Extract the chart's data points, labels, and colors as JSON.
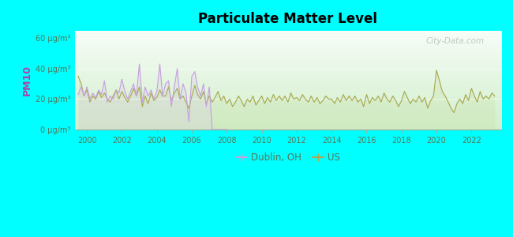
{
  "title": "Particulate Matter Level",
  "ylabel": "PM10",
  "background_outer": "#00FFFF",
  "watermark": "City-Data.com",
  "yticks": [
    0,
    20,
    40,
    60
  ],
  "ytick_labels": [
    "0 μg/m³",
    "20 μg/m³",
    "40 μg/m³",
    "60 μg/m³"
  ],
  "xmin": 1999.3,
  "xmax": 2023.7,
  "ymin": 0,
  "ymax": 65,
  "dublin_color": "#c8a0e0",
  "us_color": "#a8aa50",
  "dublin_fill": "#ddc8f0",
  "us_fill": "#c8dca0",
  "legend_dublin": "Dublin, OH",
  "legend_us": "US",
  "dublin_data": [
    [
      1999.5,
      23
    ],
    [
      1999.67,
      28
    ],
    [
      1999.83,
      22
    ],
    [
      2000.0,
      28
    ],
    [
      2000.17,
      20
    ],
    [
      2000.33,
      24
    ],
    [
      2000.5,
      21
    ],
    [
      2000.67,
      26
    ],
    [
      2000.83,
      23
    ],
    [
      2001.0,
      32
    ],
    [
      2001.17,
      18
    ],
    [
      2001.33,
      22
    ],
    [
      2001.5,
      20
    ],
    [
      2001.67,
      26
    ],
    [
      2001.83,
      24
    ],
    [
      2002.0,
      33
    ],
    [
      2002.17,
      25
    ],
    [
      2002.33,
      20
    ],
    [
      2002.5,
      25
    ],
    [
      2002.67,
      30
    ],
    [
      2002.83,
      22
    ],
    [
      2003.0,
      43
    ],
    [
      2003.17,
      18
    ],
    [
      2003.33,
      28
    ],
    [
      2003.5,
      22
    ],
    [
      2003.67,
      26
    ],
    [
      2003.83,
      20
    ],
    [
      2004.0,
      25
    ],
    [
      2004.17,
      43
    ],
    [
      2004.33,
      22
    ],
    [
      2004.5,
      30
    ],
    [
      2004.67,
      32
    ],
    [
      2004.83,
      15
    ],
    [
      2005.0,
      28
    ],
    [
      2005.17,
      40
    ],
    [
      2005.33,
      20
    ],
    [
      2005.5,
      30
    ],
    [
      2005.67,
      24
    ],
    [
      2005.83,
      5
    ],
    [
      2006.0,
      35
    ],
    [
      2006.17,
      38
    ],
    [
      2006.33,
      28
    ],
    [
      2006.5,
      22
    ],
    [
      2006.67,
      30
    ],
    [
      2006.83,
      15
    ],
    [
      2007.0,
      28
    ],
    [
      2007.17,
      0
    ],
    [
      2007.33,
      0
    ],
    [
      2007.5,
      0
    ],
    [
      2007.67,
      0
    ],
    [
      2007.83,
      0
    ],
    [
      2008.0,
      0
    ]
  ],
  "us_data": [
    [
      1999.5,
      35
    ],
    [
      1999.67,
      30
    ],
    [
      1999.83,
      22
    ],
    [
      2000.0,
      26
    ],
    [
      2000.17,
      18
    ],
    [
      2000.33,
      22
    ],
    [
      2000.5,
      20
    ],
    [
      2000.67,
      25
    ],
    [
      2000.83,
      21
    ],
    [
      2001.0,
      24
    ],
    [
      2001.17,
      20
    ],
    [
      2001.33,
      18
    ],
    [
      2001.5,
      22
    ],
    [
      2001.67,
      26
    ],
    [
      2001.83,
      20
    ],
    [
      2002.0,
      25
    ],
    [
      2002.17,
      21
    ],
    [
      2002.33,
      18
    ],
    [
      2002.5,
      22
    ],
    [
      2002.67,
      27
    ],
    [
      2002.83,
      22
    ],
    [
      2003.0,
      28
    ],
    [
      2003.17,
      15
    ],
    [
      2003.33,
      22
    ],
    [
      2003.5,
      17
    ],
    [
      2003.67,
      24
    ],
    [
      2003.83,
      19
    ],
    [
      2004.0,
      21
    ],
    [
      2004.17,
      26
    ],
    [
      2004.33,
      22
    ],
    [
      2004.5,
      22
    ],
    [
      2004.67,
      28
    ],
    [
      2004.83,
      19
    ],
    [
      2005.0,
      24
    ],
    [
      2005.17,
      27
    ],
    [
      2005.33,
      20
    ],
    [
      2005.5,
      22
    ],
    [
      2005.67,
      18
    ],
    [
      2005.83,
      14
    ],
    [
      2006.0,
      22
    ],
    [
      2006.17,
      29
    ],
    [
      2006.33,
      23
    ],
    [
      2006.5,
      20
    ],
    [
      2006.67,
      25
    ],
    [
      2006.83,
      17
    ],
    [
      2007.0,
      22
    ],
    [
      2007.17,
      18
    ],
    [
      2007.33,
      21
    ],
    [
      2007.5,
      25
    ],
    [
      2007.67,
      19
    ],
    [
      2007.83,
      22
    ],
    [
      2008.0,
      17
    ],
    [
      2008.17,
      20
    ],
    [
      2008.33,
      15
    ],
    [
      2008.5,
      18
    ],
    [
      2008.67,
      22
    ],
    [
      2008.83,
      19
    ],
    [
      2009.0,
      15
    ],
    [
      2009.17,
      20
    ],
    [
      2009.33,
      18
    ],
    [
      2009.5,
      22
    ],
    [
      2009.67,
      16
    ],
    [
      2009.83,
      19
    ],
    [
      2010.0,
      22
    ],
    [
      2010.17,
      17
    ],
    [
      2010.33,
      21
    ],
    [
      2010.5,
      18
    ],
    [
      2010.67,
      23
    ],
    [
      2010.83,
      19
    ],
    [
      2011.0,
      22
    ],
    [
      2011.17,
      19
    ],
    [
      2011.33,
      22
    ],
    [
      2011.5,
      18
    ],
    [
      2011.67,
      24
    ],
    [
      2011.83,
      20
    ],
    [
      2012.0,
      21
    ],
    [
      2012.17,
      19
    ],
    [
      2012.33,
      23
    ],
    [
      2012.5,
      20
    ],
    [
      2012.67,
      18
    ],
    [
      2012.83,
      22
    ],
    [
      2013.0,
      18
    ],
    [
      2013.17,
      21
    ],
    [
      2013.33,
      17
    ],
    [
      2013.5,
      19
    ],
    [
      2013.67,
      22
    ],
    [
      2013.83,
      20
    ],
    [
      2014.0,
      20
    ],
    [
      2014.17,
      17
    ],
    [
      2014.33,
      21
    ],
    [
      2014.5,
      18
    ],
    [
      2014.67,
      23
    ],
    [
      2014.83,
      19
    ],
    [
      2015.0,
      22
    ],
    [
      2015.17,
      19
    ],
    [
      2015.33,
      22
    ],
    [
      2015.5,
      18
    ],
    [
      2015.67,
      20
    ],
    [
      2015.83,
      15
    ],
    [
      2016.0,
      23
    ],
    [
      2016.17,
      17
    ],
    [
      2016.33,
      21
    ],
    [
      2016.5,
      19
    ],
    [
      2016.67,
      22
    ],
    [
      2016.83,
      18
    ],
    [
      2017.0,
      24
    ],
    [
      2017.17,
      20
    ],
    [
      2017.33,
      18
    ],
    [
      2017.5,
      22
    ],
    [
      2017.67,
      19
    ],
    [
      2017.83,
      15
    ],
    [
      2018.0,
      19
    ],
    [
      2018.17,
      25
    ],
    [
      2018.33,
      21
    ],
    [
      2018.5,
      17
    ],
    [
      2018.67,
      20
    ],
    [
      2018.83,
      18
    ],
    [
      2019.0,
      22
    ],
    [
      2019.17,
      18
    ],
    [
      2019.33,
      21
    ],
    [
      2019.5,
      14
    ],
    [
      2019.67,
      19
    ],
    [
      2019.83,
      22
    ],
    [
      2020.0,
      39
    ],
    [
      2020.17,
      32
    ],
    [
      2020.33,
      25
    ],
    [
      2020.5,
      22
    ],
    [
      2020.67,
      18
    ],
    [
      2020.83,
      14
    ],
    [
      2021.0,
      11
    ],
    [
      2021.17,
      17
    ],
    [
      2021.33,
      20
    ],
    [
      2021.5,
      17
    ],
    [
      2021.67,
      23
    ],
    [
      2021.83,
      19
    ],
    [
      2022.0,
      27
    ],
    [
      2022.17,
      22
    ],
    [
      2022.33,
      18
    ],
    [
      2022.5,
      25
    ],
    [
      2022.67,
      20
    ],
    [
      2022.83,
      22
    ],
    [
      2023.0,
      20
    ],
    [
      2023.17,
      24
    ],
    [
      2023.33,
      22
    ]
  ]
}
